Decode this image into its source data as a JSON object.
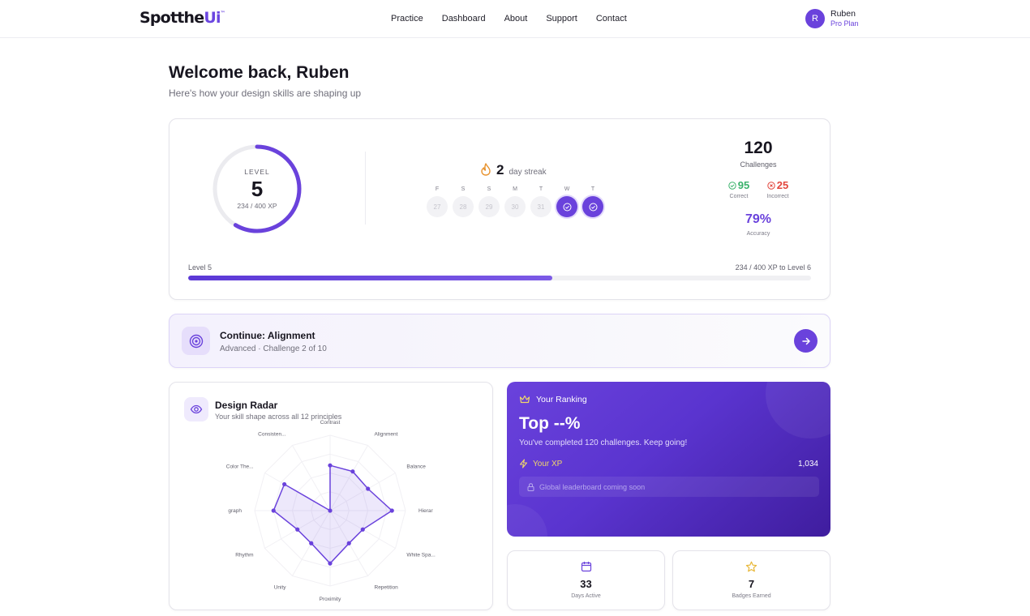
{
  "nav": {
    "logo_main": "Spotthe",
    "logo_accent": "Ui",
    "logo_mark": "™",
    "links": [
      "Practice",
      "Dashboard",
      "About",
      "Support",
      "Contact"
    ],
    "user": {
      "initial": "R",
      "name": "Ruben",
      "plan": "Pro Plan"
    }
  },
  "header": {
    "title": "Welcome back, Ruben",
    "subtitle": "Here's how your design skills are shaping up"
  },
  "stats": {
    "level_label": "LEVEL",
    "level": "5",
    "xp_text": "234 / 400 XP",
    "xp_fraction": 0.585,
    "streak_num": "2",
    "streak_label": "day streak",
    "days": [
      {
        "letter": "F",
        "num": "27",
        "done": false
      },
      {
        "letter": "S",
        "num": "28",
        "done": false
      },
      {
        "letter": "S",
        "num": "29",
        "done": false
      },
      {
        "letter": "M",
        "num": "30",
        "done": false
      },
      {
        "letter": "T",
        "num": "31",
        "done": false
      },
      {
        "letter": "W",
        "num": "",
        "done": true
      },
      {
        "letter": "T",
        "num": "",
        "done": true
      }
    ],
    "challenges": "120",
    "challenges_label": "Challenges",
    "correct": "95",
    "correct_label": "Correct",
    "incorrect": "25",
    "incorrect_label": "Incorrect",
    "accuracy": "79%",
    "accuracy_label": "Accuracy",
    "progress_left": "Level 5",
    "progress_right": "234 / 400 XP to Level 6",
    "progress_fraction": 0.585
  },
  "continue": {
    "title": "Continue: Alignment",
    "subtitle": "Advanced · Challenge 2 of 10"
  },
  "radar": {
    "title": "Design Radar",
    "subtitle": "Your skill shape across all 12 principles",
    "axes": [
      "Contrast",
      "Alignment",
      "Balance",
      "Hierar",
      "White Spa...",
      "Repetition",
      "Proximity",
      "Unity",
      "Rhythm",
      "graph",
      "Color The...",
      "Consisten..."
    ],
    "values": [
      0.6,
      0.6,
      0.58,
      0.82,
      0.5,
      0.5,
      0.7,
      0.5,
      0.5,
      0.75,
      0.7,
      0.0
    ]
  },
  "ranking": {
    "head": "Your Ranking",
    "big": "Top --%",
    "desc": "You've completed 120 challenges. Keep going!",
    "xp_label": "Your XP",
    "xp_value": "1,034",
    "leaderboard": "Global leaderboard coming soon"
  },
  "mini": {
    "days_active": "33",
    "days_active_label": "Days Active",
    "badges": "7",
    "badges_label": "Badges Earned"
  },
  "colors": {
    "accent": "#6a42dc",
    "correct": "#3ab26b",
    "incorrect": "#e2453c",
    "gold": "#e8b83a"
  }
}
